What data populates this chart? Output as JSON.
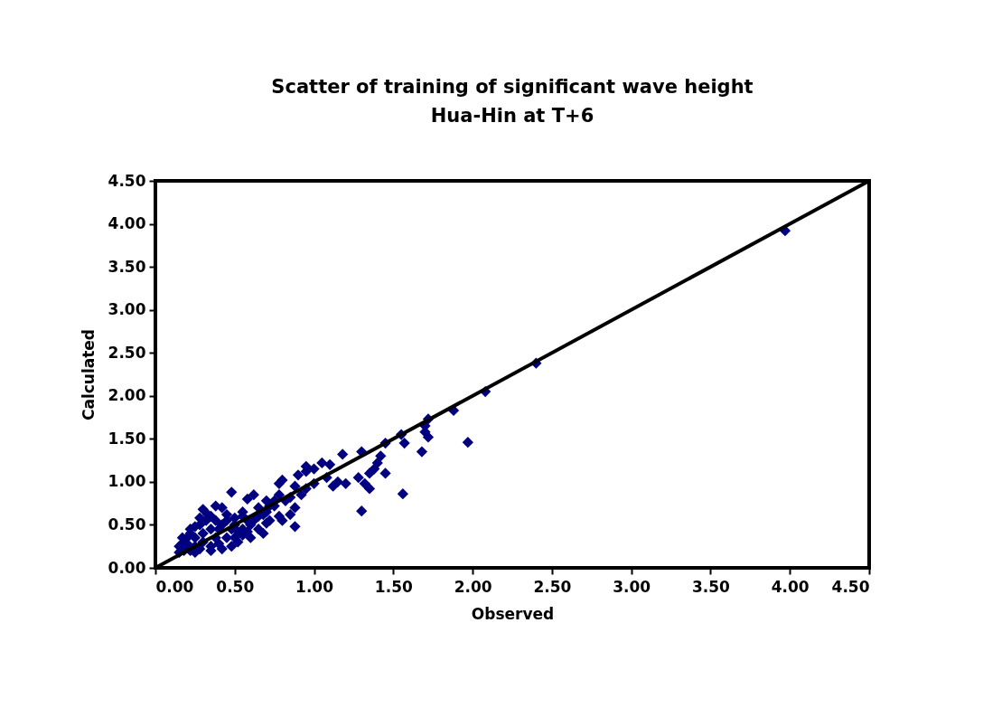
{
  "chart_data": {
    "type": "scatter",
    "title": [
      "Scatter of training of significant wave height",
      "Hua-Hin  at T+6"
    ],
    "xlabel": "Observed",
    "ylabel": "Calculated",
    "xlim": [
      0,
      4.5
    ],
    "ylim": [
      0,
      4.5
    ],
    "xticks": [
      {
        "value": 0,
        "label": "0.00"
      },
      {
        "value": 0.5,
        "label": "0.50"
      },
      {
        "value": 1,
        "label": "1.00"
      },
      {
        "value": 1.5,
        "label": "1.50"
      },
      {
        "value": 2,
        "label": "2.00"
      },
      {
        "value": 2.5,
        "label": "2.50"
      },
      {
        "value": 3,
        "label": "3.00"
      },
      {
        "value": 3.5,
        "label": "3.50"
      },
      {
        "value": 4,
        "label": "4.00"
      },
      {
        "value": 4.5,
        "label": "4.50"
      }
    ],
    "yticks": [
      {
        "value": 0,
        "label": "0.00"
      },
      {
        "value": 0.5,
        "label": "0.50"
      },
      {
        "value": 1,
        "label": "1.00"
      },
      {
        "value": 1.5,
        "label": "1.50"
      },
      {
        "value": 2,
        "label": "2.00"
      },
      {
        "value": 2.5,
        "label": "2.50"
      },
      {
        "value": 3,
        "label": "3.00"
      },
      {
        "value": 3.5,
        "label": "3.50"
      },
      {
        "value": 4,
        "label": "4.00"
      },
      {
        "value": 4.5,
        "label": "4.50"
      }
    ],
    "grid": false,
    "series": [
      {
        "marker": "diamond",
        "color": "#000080",
        "x": [
          3.97,
          2.4,
          2.08,
          1.88,
          1.97,
          1.56,
          1.3,
          1.72,
          1.7,
          1.68,
          1.72,
          1.7,
          1.55,
          1.57,
          1.45,
          1.42,
          1.4,
          1.38,
          1.35,
          1.3,
          1.28,
          1.32,
          1.35,
          1.45,
          1.18,
          1.1,
          1.05,
          1.0,
          0.95,
          1.08,
          1.15,
          1.12,
          1.2,
          0.92,
          0.88,
          0.85,
          0.8,
          0.78,
          0.82,
          0.75,
          0.85,
          0.8,
          0.88,
          0.78,
          0.7,
          0.72,
          0.65,
          0.62,
          0.58,
          0.55,
          0.6,
          0.65,
          0.68,
          0.55,
          0.5,
          0.48,
          0.45,
          0.42,
          0.4,
          0.38,
          0.35,
          0.32,
          0.3,
          0.28,
          0.25,
          0.22,
          0.2,
          0.18,
          0.15,
          0.15,
          0.18,
          0.22,
          0.25,
          0.28,
          0.3,
          0.35,
          0.38,
          0.4,
          0.45,
          0.48,
          0.5,
          0.52,
          0.55,
          0.58,
          0.6,
          0.62,
          0.65,
          0.68,
          0.7,
          0.72,
          0.75,
          0.78,
          0.7,
          0.2,
          0.25,
          0.3,
          0.35,
          0.42,
          0.5,
          0.55,
          0.17,
          0.22,
          0.28,
          0.33,
          0.38,
          0.45,
          0.52,
          0.35,
          0.42,
          0.25,
          0.48,
          0.58,
          0.9,
          0.95,
          1.0,
          0.88,
          0.95
        ],
        "values": [
          3.92,
          2.38,
          2.05,
          1.83,
          1.46,
          0.86,
          0.66,
          1.73,
          1.65,
          1.35,
          1.52,
          1.58,
          1.55,
          1.45,
          1.45,
          1.3,
          1.22,
          1.15,
          1.1,
          1.35,
          1.05,
          0.98,
          0.92,
          1.1,
          1.32,
          1.2,
          1.22,
          1.15,
          1.12,
          1.05,
          1.0,
          0.95,
          0.98,
          0.85,
          0.95,
          0.82,
          1.02,
          0.98,
          0.78,
          0.72,
          0.62,
          0.55,
          0.48,
          0.6,
          0.65,
          0.55,
          0.7,
          0.85,
          0.8,
          0.6,
          0.5,
          0.45,
          0.4,
          0.45,
          0.5,
          0.88,
          0.55,
          0.7,
          0.45,
          0.72,
          0.6,
          0.55,
          0.68,
          0.5,
          0.48,
          0.4,
          0.35,
          0.3,
          0.25,
          0.18,
          0.2,
          0.2,
          0.25,
          0.22,
          0.3,
          0.25,
          0.35,
          0.28,
          0.35,
          0.25,
          0.35,
          0.3,
          0.38,
          0.42,
          0.35,
          0.55,
          0.6,
          0.62,
          0.52,
          0.72,
          0.78,
          0.85,
          0.78,
          0.28,
          0.35,
          0.4,
          0.45,
          0.5,
          0.58,
          0.65,
          0.35,
          0.45,
          0.58,
          0.62,
          0.55,
          0.62,
          0.42,
          0.2,
          0.22,
          0.18,
          0.45,
          0.55,
          1.08,
          0.92,
          0.98,
          0.7,
          1.18
        ]
      },
      {
        "type": "line",
        "marker": "none",
        "line_style": "solid",
        "color": "#000000",
        "x": [
          0,
          4.5
        ],
        "values": [
          0,
          4.5
        ]
      }
    ]
  }
}
